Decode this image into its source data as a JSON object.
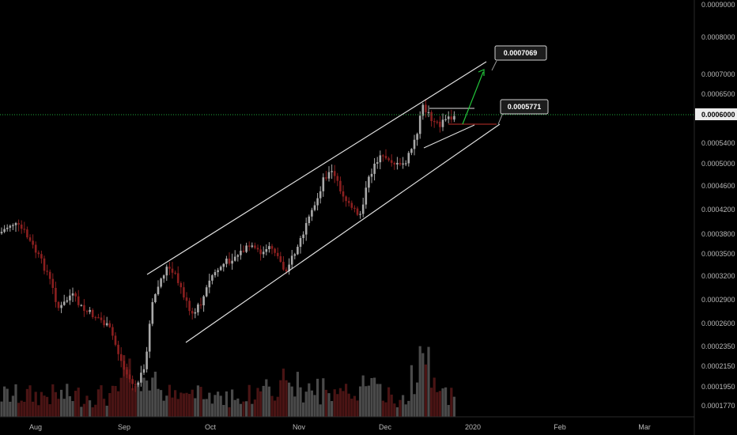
{
  "chart_data": {
    "type": "candlestick",
    "y_axis_labels": [
      "0.0009000",
      "0.0008000",
      "0.0007000",
      "0.0006500",
      "0.0006000",
      "0.0005400",
      "0.0005000",
      "0.0004600",
      "0.0004200",
      "0.0003800",
      "0.0003500",
      "0.0003200",
      "0.0002900",
      "0.0002600",
      "0.0002350",
      "0.0002150",
      "0.0001950",
      "0.0001770"
    ],
    "x_axis_labels": [
      "Aug",
      "Sep",
      "Oct",
      "Nov",
      "Dec",
      "2020",
      "Feb",
      "Mar"
    ],
    "log_scale": true,
    "current_price": "0.0006000",
    "callouts": [
      {
        "id": "target",
        "label": "0.0007069"
      },
      {
        "id": "support",
        "label": "0.0005771"
      }
    ],
    "colors": {
      "up": "#a9a9a9",
      "down": "#8b1f1f",
      "channel": "#e0e0e0",
      "current_line": "#1faa3c",
      "arrow_up": "#22c43a",
      "arrow_support": "#c0302a"
    }
  }
}
